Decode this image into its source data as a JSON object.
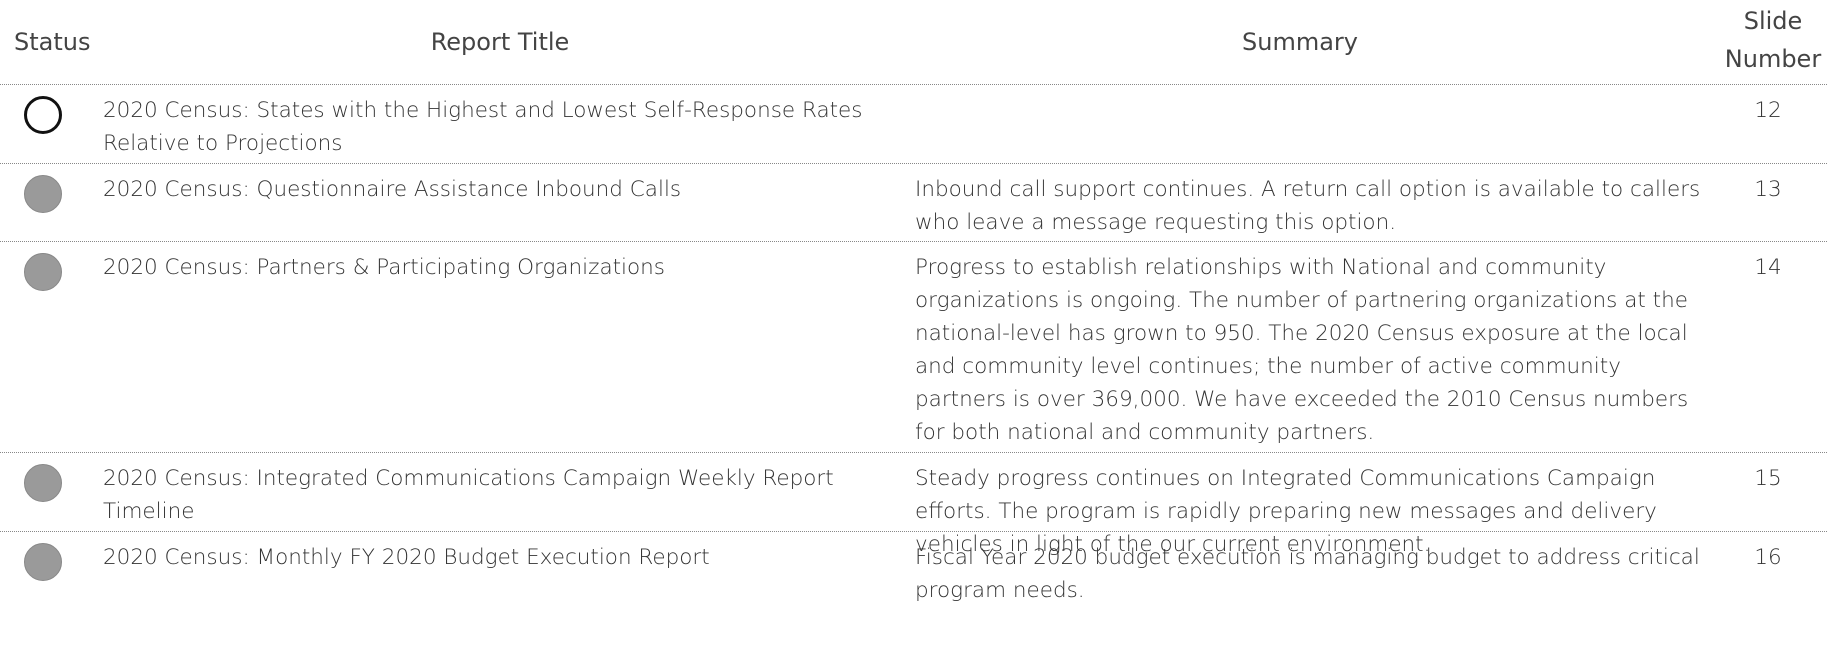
{
  "table": {
    "header": [
      "Status",
      "Report Title",
      "Summary",
      "Slide Number"
    ],
    "rows": [
      {
        "title": "2020 Census: States with the Highest and Lowest Self-Response Rates Relative to Projections",
        "slide": 12
      },
      {
        "title": "2020 Census: Questionnaire Assistance Inbound Calls",
        "summary": "Inbound call support continues.  A return call option is available to callers who leave a message requesting this option.",
        "slide": 13
      },
      {
        "title": "2020 Census: Partners & Participating Organizations",
        "summary": "Progress to establish relationships with National and community organizations is ongoing.  The number of partnering organizations at the national-level has grown to 950.  The 2020 Census exposure at the local and community level continues; the number of active community partners is over 369,000.  We have exceeded the 2010 Census numbers for both national and community partners.",
        "slide": 14
      },
      {
        "title": "2020 Census: Integrated Communications Campaign Weekly Report Timeline",
        "summary": "Steady progress continues on Integrated Communications Campaign efforts. The program is rapidly preparing new messages and delivery vehicles in light of the our current environment.",
        "slide": 15
      },
      {
        "title": "2020 Census: Monthly FY 2020 Budget Execution Report",
        "summary": "Fiscal Year 2020 budget execution is managing budget to address critical program needs.",
        "slide": 16
      }
    ]
  }
}
